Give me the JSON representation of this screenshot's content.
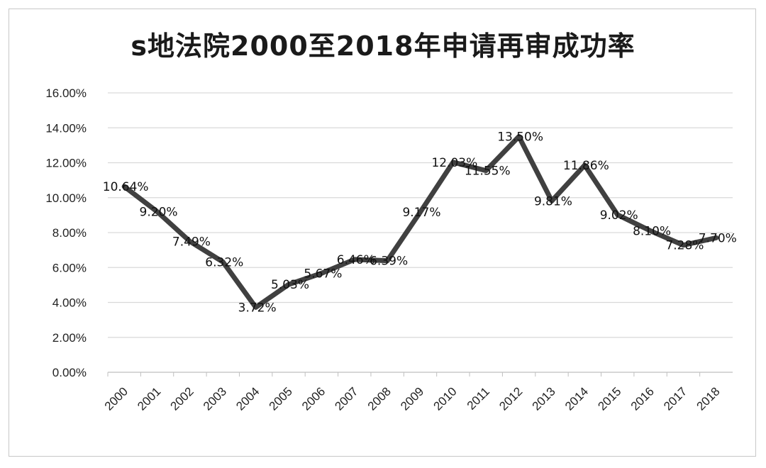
{
  "chart_data": {
    "type": "line",
    "title": "s地法院2000至2018年申请再审成功率",
    "xlabel": "",
    "ylabel": "",
    "categories": [
      "2000",
      "2001",
      "2002",
      "2003",
      "2004",
      "2005",
      "2006",
      "2007",
      "2008",
      "2009",
      "2010",
      "2011",
      "2012",
      "2013",
      "2014",
      "2015",
      "2016",
      "2017",
      "2018"
    ],
    "series": [
      {
        "values": [
          10.64,
          9.2,
          7.49,
          6.32,
          3.72,
          5.03,
          5.67,
          6.46,
          6.39,
          9.17,
          12.03,
          11.55,
          13.5,
          9.81,
          11.86,
          9.02,
          8.1,
          7.28,
          7.7
        ],
        "labels": [
          "10.64%",
          "9.20%",
          "7.49%",
          "6.32%",
          "3.72%",
          "5.03%",
          "5.67%",
          "6.46%",
          "6.39%",
          "9.17%",
          "12.03%",
          "11.55%",
          "13.50%",
          "9.81%",
          "11.86%",
          "9.02%",
          "8.10%",
          "7.28%",
          "7.70%"
        ]
      }
    ],
    "y_ticks": [
      "0.00%",
      "2.00%",
      "4.00%",
      "6.00%",
      "8.00%",
      "10.00%",
      "12.00%",
      "14.00%",
      "16.00%"
    ],
    "ylim": [
      0,
      16
    ],
    "grid": true,
    "legend": "none",
    "line_color": "#404040",
    "grid_color": "#d9d9d9"
  }
}
